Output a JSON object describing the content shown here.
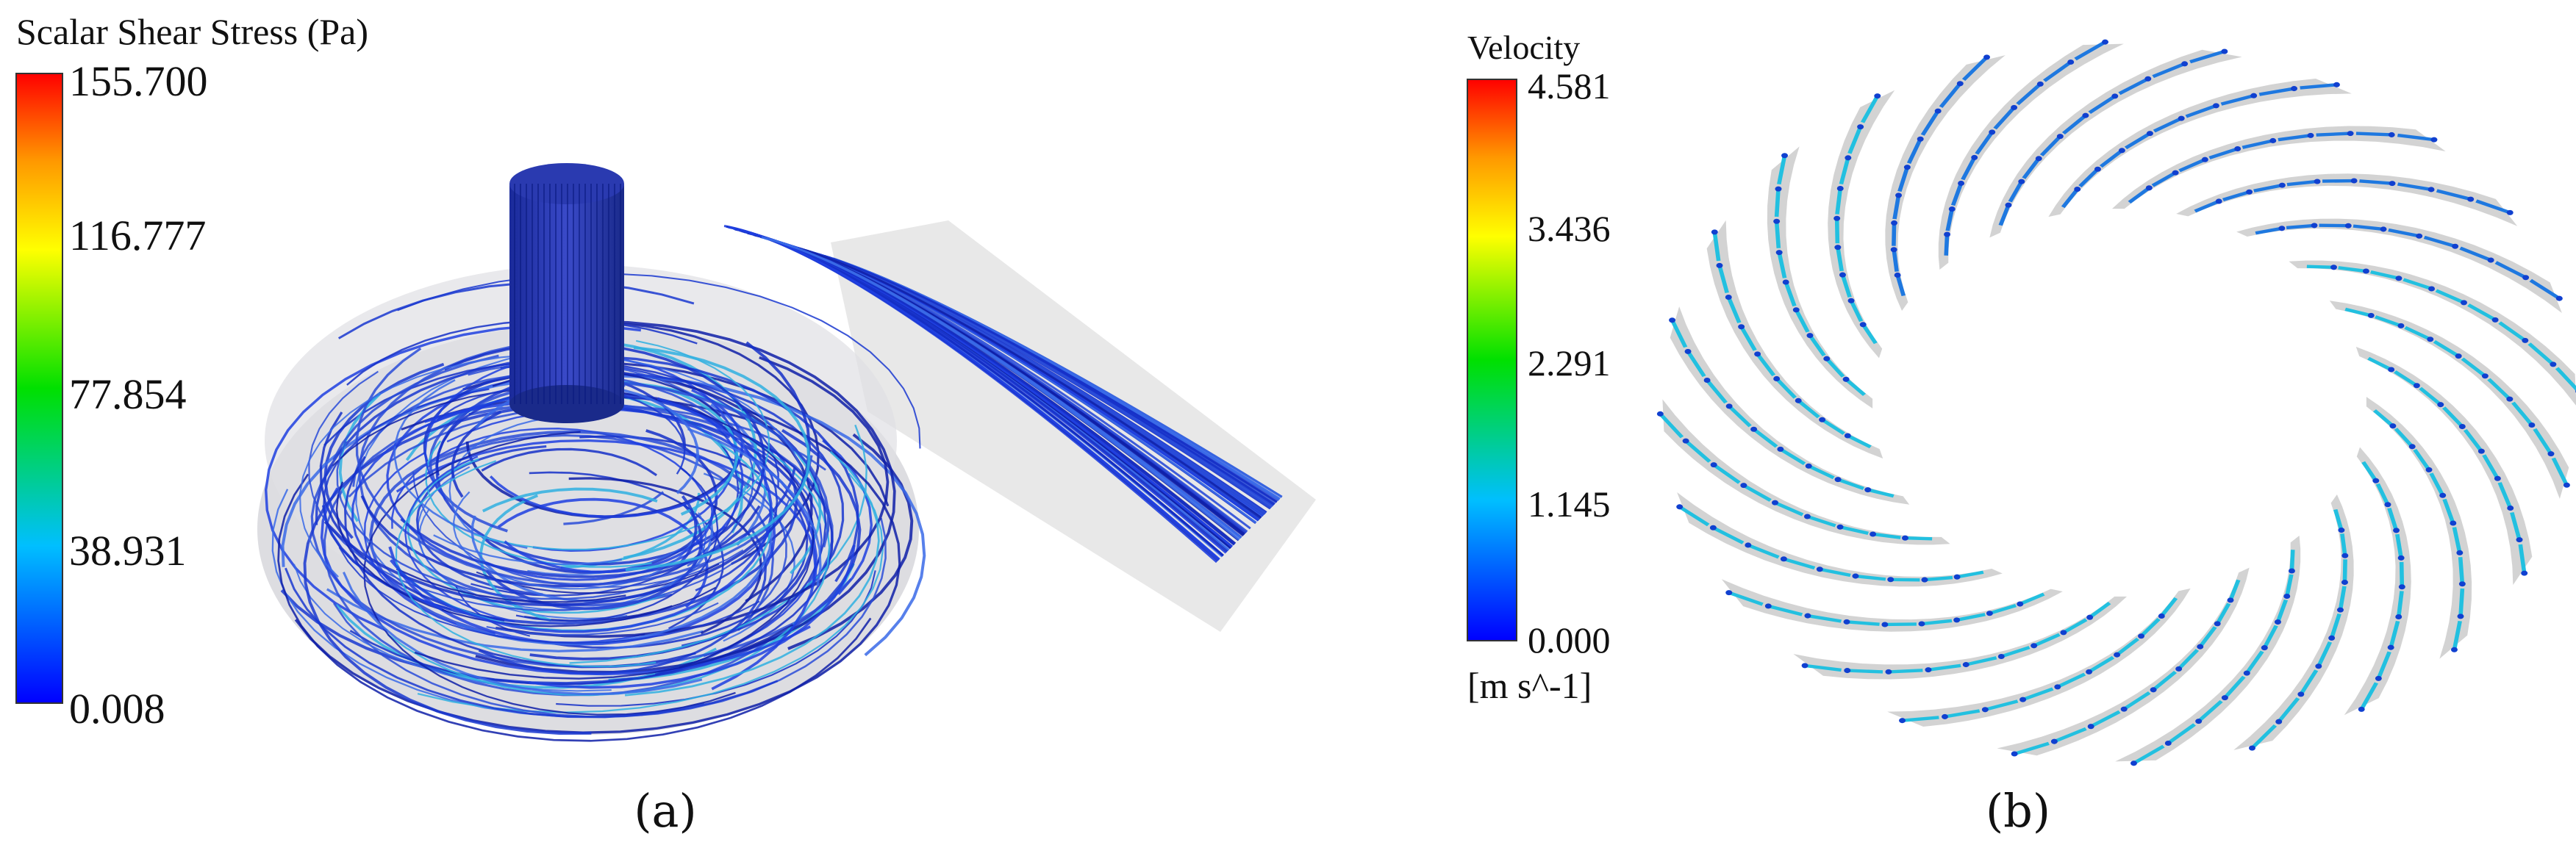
{
  "panels": [
    {
      "legend": {
        "title": "Scalar Shear Stress (Pa)",
        "ticks": [
          "155.700",
          "116.777",
          "77.854",
          "38.931",
          "0.008"
        ]
      },
      "caption": "(a)"
    },
    {
      "legend": {
        "title": "Velocity",
        "ticks": [
          "4.581",
          "3.436",
          "2.291",
          "1.145",
          "0.000"
        ],
        "unit": "[m s^-1]"
      },
      "caption": "(b)"
    }
  ]
}
